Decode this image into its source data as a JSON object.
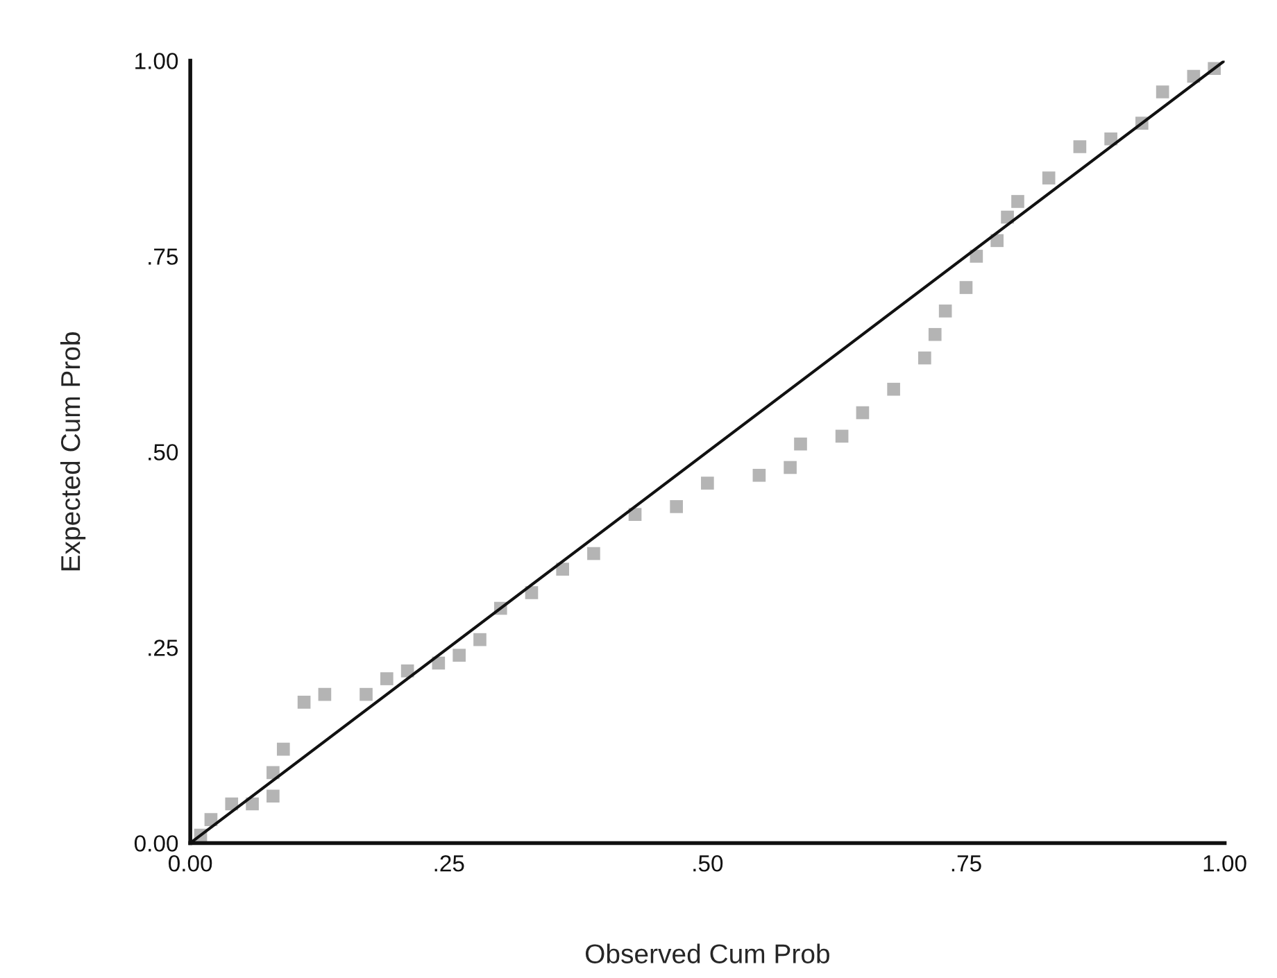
{
  "chart_data": {
    "type": "scatter",
    "xlabel": "Observed Cum Prob",
    "ylabel": "Expected Cum Prob",
    "xlim": [
      0,
      1
    ],
    "ylim": [
      0,
      1
    ],
    "xticks": [
      {
        "value": 0,
        "label": "0.00"
      },
      {
        "value": 0.25,
        "label": ".25"
      },
      {
        "value": 0.5,
        "label": ".50"
      },
      {
        "value": 0.75,
        "label": ".75"
      },
      {
        "value": 1,
        "label": "1.00"
      }
    ],
    "yticks": [
      {
        "value": 0,
        "label": "0.00"
      },
      {
        "value": 0.25,
        "label": ".25"
      },
      {
        "value": 0.5,
        "label": ".50"
      },
      {
        "value": 0.75,
        "label": ".75"
      },
      {
        "value": 1,
        "label": "1.00"
      }
    ],
    "grid": false,
    "legend": false,
    "series": [
      {
        "marker": "square",
        "color": "#b4b4b4",
        "x": [
          0.01,
          0.02,
          0.04,
          0.06,
          0.08,
          0.08,
          0.09,
          0.11,
          0.13,
          0.17,
          0.19,
          0.21,
          0.24,
          0.26,
          0.28,
          0.3,
          0.33,
          0.36,
          0.39,
          0.43,
          0.47,
          0.5,
          0.55,
          0.58,
          0.59,
          0.63,
          0.65,
          0.68,
          0.71,
          0.72,
          0.73,
          0.75,
          0.76,
          0.78,
          0.79,
          0.8,
          0.83,
          0.86,
          0.89,
          0.92,
          0.94,
          0.97,
          0.99
        ],
        "values": [
          0.01,
          0.03,
          0.05,
          0.05,
          0.06,
          0.09,
          0.12,
          0.18,
          0.19,
          0.19,
          0.21,
          0.22,
          0.23,
          0.24,
          0.26,
          0.3,
          0.32,
          0.35,
          0.37,
          0.42,
          0.43,
          0.46,
          0.47,
          0.48,
          0.51,
          0.52,
          0.55,
          0.58,
          0.62,
          0.65,
          0.68,
          0.71,
          0.75,
          0.77,
          0.8,
          0.82,
          0.85,
          0.89,
          0.9,
          0.92,
          0.96,
          0.98,
          0.99
        ]
      },
      {
        "type": "line",
        "color": "#111111",
        "x": [
          0,
          1
        ],
        "values": [
          0,
          1
        ]
      }
    ]
  }
}
